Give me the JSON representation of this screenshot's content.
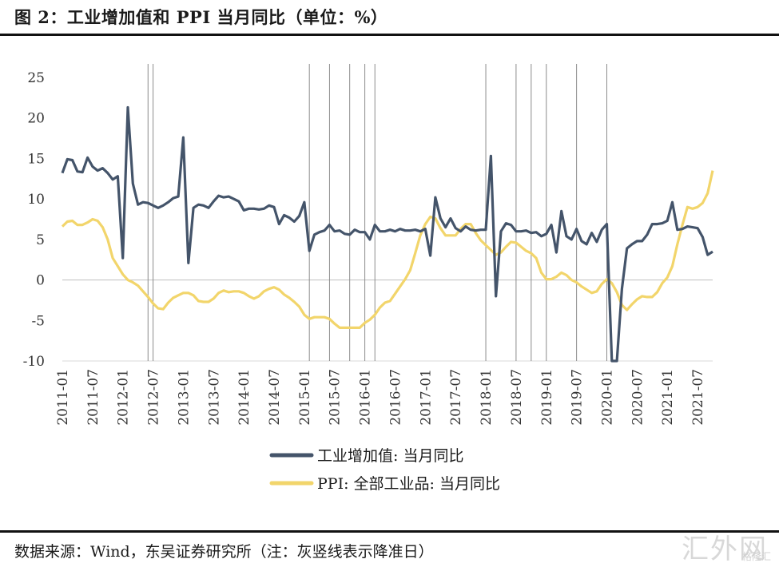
{
  "title": "图 2：工业增加值和 PPI 当月同比（单位：%）",
  "source": "数据来源：Wind，东吴证券研究所（注：灰竖线表示降准日）",
  "watermark": "汇外网",
  "watermark_sub": "格隆汇",
  "colors": {
    "industry": "#44546a",
    "ppi": "#f2d56b",
    "vline": "#8c8c8c",
    "zero": "#bfbfbf"
  },
  "chart_data": {
    "type": "line",
    "x_start": "2011-01",
    "x_end": "2021-10",
    "xlabel": "",
    "ylabel": "",
    "ylim": [
      -10,
      25
    ],
    "yticks": [
      "25",
      "20",
      "15",
      "10",
      "5",
      "0",
      "-5",
      "-10"
    ],
    "xticks": [
      "2011-01",
      "2011-07",
      "2012-01",
      "2012-07",
      "2013-01",
      "2013-07",
      "2014-01",
      "2014-07",
      "2015-01",
      "2015-07",
      "2016-01",
      "2016-07",
      "2017-01",
      "2017-07",
      "2018-01",
      "2018-07",
      "2019-01",
      "2019-07",
      "2020-01",
      "2020-07",
      "2021-01",
      "2021-07"
    ],
    "legend_position": "bottom",
    "series": [
      {
        "name": "工业增加值: 当月同比",
        "values": [
          13.2,
          14.9,
          14.8,
          13.4,
          13.3,
          15.1,
          14.0,
          13.5,
          13.8,
          13.2,
          12.4,
          12.8,
          2.7,
          21.3,
          11.9,
          9.3,
          9.6,
          9.5,
          9.2,
          8.9,
          9.2,
          9.6,
          10.1,
          10.3,
          17.6,
          2.1,
          8.9,
          9.3,
          9.2,
          8.9,
          9.7,
          10.4,
          10.2,
          10.3,
          10.0,
          9.7,
          8.6,
          8.8,
          8.8,
          8.7,
          8.8,
          9.2,
          9.0,
          6.9,
          8.0,
          7.7,
          7.2,
          7.9,
          9.6,
          3.6,
          5.6,
          5.9,
          6.1,
          6.8,
          6.0,
          6.1,
          5.7,
          5.6,
          6.2,
          5.9,
          5.9,
          5.0,
          6.8,
          6.0,
          6.0,
          6.2,
          6.0,
          6.3,
          6.1,
          6.1,
          6.2,
          6.0,
          6.3,
          3.0,
          10.2,
          7.6,
          6.5,
          7.6,
          6.4,
          6.0,
          6.6,
          6.2,
          6.1,
          6.2,
          6.2,
          15.3,
          -2.0,
          6.0,
          7.0,
          6.8,
          6.0,
          6.0,
          6.1,
          5.8,
          5.9,
          5.4,
          5.7,
          6.8,
          3.4,
          8.5,
          5.4,
          5.0,
          6.3,
          4.8,
          4.4,
          5.8,
          4.7,
          6.2,
          6.9,
          -10.0,
          -10.0,
          -1.1,
          3.9,
          4.4,
          4.8,
          4.8,
          5.6,
          6.9,
          6.9,
          7.0,
          7.3,
          9.6,
          6.2,
          6.3,
          6.6,
          6.5,
          6.4,
          5.3,
          3.1,
          3.5
        ]
      },
      {
        "name": "PPI: 全部工业品: 当月同比",
        "values": [
          6.6,
          7.2,
          7.3,
          6.8,
          6.8,
          7.1,
          7.5,
          7.3,
          6.5,
          5.0,
          2.7,
          1.7,
          0.7,
          0.0,
          -0.3,
          -0.7,
          -1.4,
          -2.1,
          -2.9,
          -3.5,
          -3.6,
          -2.8,
          -2.2,
          -1.9,
          -1.6,
          -1.6,
          -1.9,
          -2.6,
          -2.7,
          -2.7,
          -2.3,
          -1.6,
          -1.3,
          -1.5,
          -1.4,
          -1.4,
          -1.6,
          -2.0,
          -2.3,
          -2.0,
          -1.4,
          -1.1,
          -0.9,
          -1.2,
          -1.8,
          -2.2,
          -2.7,
          -3.3,
          -4.3,
          -4.8,
          -4.6,
          -4.6,
          -4.6,
          -4.8,
          -5.4,
          -5.9,
          -5.9,
          -5.9,
          -5.9,
          -5.9,
          -5.3,
          -4.9,
          -4.3,
          -3.4,
          -2.8,
          -2.6,
          -1.7,
          -0.8,
          0.1,
          1.2,
          3.3,
          5.5,
          6.9,
          7.8,
          7.6,
          6.4,
          5.5,
          5.5,
          5.5,
          6.3,
          6.9,
          6.9,
          5.8,
          4.9,
          4.3,
          3.7,
          3.1,
          3.4,
          4.1,
          4.7,
          4.6,
          4.1,
          3.6,
          3.3,
          2.7,
          0.9,
          0.1,
          0.1,
          0.4,
          0.9,
          0.6,
          0.0,
          -0.3,
          -0.8,
          -1.2,
          -1.6,
          -1.4,
          -0.5,
          0.1,
          -0.4,
          -1.5,
          -3.1,
          -3.7,
          -3.0,
          -2.4,
          -2.0,
          -2.1,
          -2.1,
          -1.5,
          -0.4,
          0.3,
          1.7,
          4.4,
          6.8,
          9.0,
          8.8,
          9.0,
          9.5,
          10.7,
          13.5
        ]
      }
    ],
    "vlines": [
      "2012-06",
      "2012-07",
      "2015-02",
      "2015-06",
      "2015-10",
      "2016-01",
      "2016-03",
      "2018-01",
      "2018-07",
      "2018-10",
      "2019-01",
      "2019-07",
      "2020-01"
    ]
  }
}
